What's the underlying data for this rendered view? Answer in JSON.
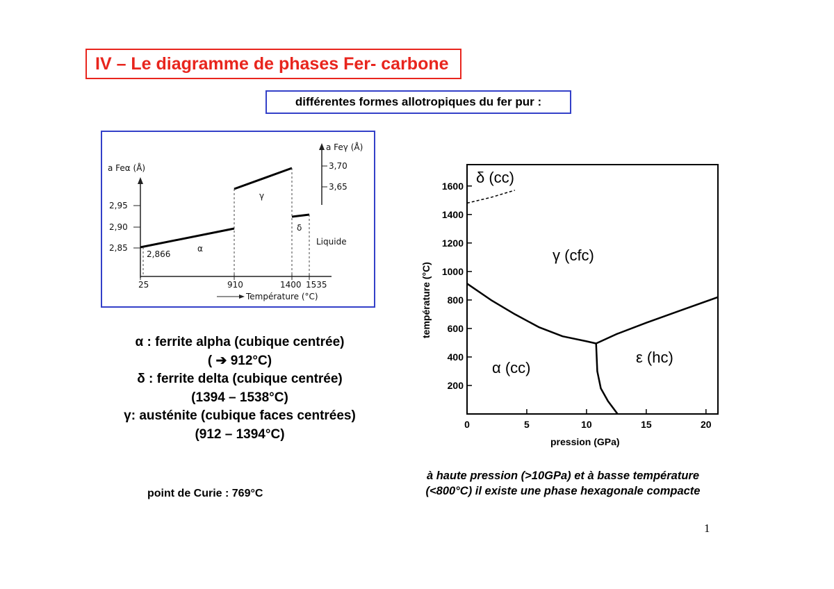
{
  "title": "IV – Le diagramme de phases Fer- carbone",
  "subtitle": "différentes formes allotropiques du fer pur :",
  "left_figure": {
    "y_left_label": "a Feα (Å)",
    "y_left_ticks": [
      "2,95",
      "2,90",
      "2,85"
    ],
    "y_right_label": "a Feγ (Å)",
    "y_right_ticks": [
      "3,70",
      "3,65"
    ],
    "x_ticks": [
      "25",
      "910",
      "1400",
      "1535"
    ],
    "x_label": "Température (°C)",
    "annotation_2866": "2,866",
    "phase_alpha": "α",
    "phase_gamma": "γ",
    "phase_delta": "δ",
    "phase_liquid": "Liquide"
  },
  "chart_data": {
    "type": "line",
    "title": "",
    "xlabel": "pression (GPa)",
    "ylabel": "température (°C)",
    "xlim": [
      0,
      21
    ],
    "ylim": [
      0,
      1750
    ],
    "x_ticks": [
      "0",
      "5",
      "10",
      "15",
      "20"
    ],
    "y_ticks": [
      "200",
      "400",
      "600",
      "800",
      "1000",
      "1200",
      "1400",
      "1600"
    ],
    "grid": false,
    "series": [
      {
        "x": [
          0,
          2,
          4,
          6,
          8,
          10,
          10.8
        ],
        "y": [
          915,
          800,
          700,
          610,
          545,
          510,
          495
        ]
      },
      {
        "x": [
          10.8,
          12.5,
          15,
          18,
          21
        ],
        "y": [
          495,
          560,
          640,
          730,
          820
        ]
      },
      {
        "x": [
          10.8,
          10.9,
          11.2,
          11.8,
          12.6
        ],
        "y": [
          495,
          300,
          180,
          90,
          0
        ]
      },
      {
        "x": [
          0,
          2,
          4
        ],
        "y": [
          1480,
          1520,
          1570
        ],
        "dashed": true
      }
    ],
    "annotations": [
      "δ (cc)",
      "γ (cfc)",
      "α (cc)",
      "ε (hc)"
    ]
  },
  "legend_lines": [
    "α : ferrite alpha (cubique centrée)",
    "(  ➔ 912°C)",
    "δ : ferrite delta (cubique centrée)",
    "(1394 – 1538°C)",
    "γ: austénite (cubique faces centrées)",
    "(912 – 1394°C)"
  ],
  "curie": "point de Curie : 769°C",
  "note_lines": [
    "à haute pression (>10GPa) et à basse température",
    "(<800°C) il existe une phase hexagonale compacte"
  ],
  "page_number": "1"
}
